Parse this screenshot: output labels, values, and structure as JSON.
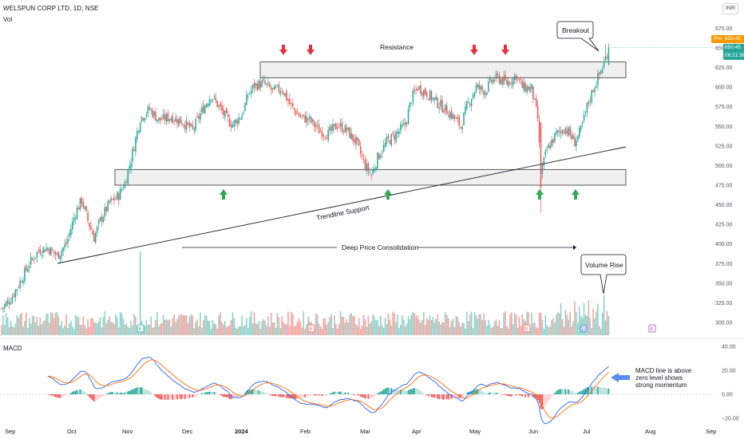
{
  "header": {
    "symbol_title": "WELSPUN CORP LTD, 1D, NSE",
    "vol_label": "Vol",
    "currency": "INR",
    "pre_tag": "Pre",
    "pre_value": "650.45",
    "last_price": "650.45",
    "countdown": "06:21:36"
  },
  "colors": {
    "up": "#26a69a",
    "down": "#ef5350",
    "vol_up": "#8fd1c8",
    "vol_down": "#f5a3a1",
    "macd_line": "#2962ff",
    "signal_line": "#ff6d00",
    "zone_fill": "#f0f0f0",
    "arrow_red": "#e5303d",
    "arrow_green": "#34a853",
    "callout_arrow": "#5b8def"
  },
  "annotations": {
    "resistance": "Resistance",
    "breakout": "Breakout",
    "trendline": "Trendline Support",
    "consolidation": "Deep Price Consolidation",
    "volume_rise": "Volume Rise",
    "macd_note": [
      "MACD line is above",
      "zero level shows",
      "strong momentum"
    ],
    "macd_title": "MACD"
  },
  "chart_data": [
    {
      "type": "candlestick",
      "title": "WELSPUN CORP LTD, 1D, NSE",
      "x_ticks": [
        "Sep",
        "Oct",
        "Nov",
        "Dec",
        "2024",
        "Feb",
        "Mar",
        "Apr",
        "May",
        "Jun",
        "Jul",
        "Aug",
        "Sep"
      ],
      "y_ticks": [
        300,
        325,
        350,
        375,
        400,
        425,
        450,
        475,
        500,
        525,
        550,
        575,
        600,
        625,
        650,
        675
      ],
      "ylim": [
        285,
        690
      ],
      "resistance_zone": [
        612,
        632
      ],
      "support_zone": [
        475,
        495
      ],
      "last_price": 650.45,
      "close_path": [
        [
          0,
          318
        ],
        [
          6,
          330
        ],
        [
          12,
          352
        ],
        [
          18,
          375
        ],
        [
          24,
          392
        ],
        [
          30,
          395
        ],
        [
          36,
          385
        ],
        [
          42,
          400
        ],
        [
          48,
          440
        ],
        [
          52,
          456
        ],
        [
          56,
          430
        ],
        [
          60,
          408
        ],
        [
          64,
          430
        ],
        [
          70,
          452
        ],
        [
          76,
          462
        ],
        [
          80,
          478
        ],
        [
          84,
          508
        ],
        [
          90,
          560
        ],
        [
          96,
          572
        ],
        [
          102,
          558
        ],
        [
          110,
          562
        ],
        [
          118,
          555
        ],
        [
          124,
          545
        ],
        [
          130,
          570
        ],
        [
          136,
          590
        ],
        [
          140,
          578
        ],
        [
          146,
          560
        ],
        [
          150,
          552
        ],
        [
          156,
          565
        ],
        [
          160,
          590
        ],
        [
          164,
          602
        ],
        [
          170,
          605
        ],
        [
          176,
          595
        ],
        [
          182,
          598
        ],
        [
          188,
          575
        ],
        [
          194,
          562
        ],
        [
          200,
          558
        ],
        [
          206,
          545
        ],
        [
          212,
          540
        ],
        [
          218,
          552
        ],
        [
          224,
          545
        ],
        [
          230,
          530
        ],
        [
          236,
          500
        ],
        [
          240,
          488
        ],
        [
          244,
          510
        ],
        [
          250,
          530
        ],
        [
          256,
          540
        ],
        [
          262,
          552
        ],
        [
          266,
          585
        ],
        [
          270,
          600
        ],
        [
          276,
          592
        ],
        [
          280,
          585
        ],
        [
          286,
          575
        ],
        [
          292,
          565
        ],
        [
          298,
          550
        ],
        [
          302,
          575
        ],
        [
          308,
          600
        ],
        [
          314,
          595
        ],
        [
          318,
          608
        ],
        [
          322,
          612
        ],
        [
          328,
          605
        ],
        [
          334,
          615
        ],
        [
          338,
          600
        ],
        [
          344,
          598
        ],
        [
          348,
          560
        ],
        [
          350,
          490
        ],
        [
          354,
          520
        ],
        [
          360,
          540
        ],
        [
          366,
          548
        ],
        [
          372,
          530
        ],
        [
          376,
          545
        ],
        [
          380,
          575
        ],
        [
          384,
          598
        ],
        [
          390,
          625
        ],
        [
          394,
          650
        ]
      ]
    },
    {
      "type": "bar",
      "title": "Vol",
      "markers": [
        "E",
        "E",
        "E",
        "D",
        "E"
      ]
    },
    {
      "type": "line",
      "title": "MACD",
      "series": [
        {
          "name": "MACD",
          "values": []
        },
        {
          "name": "Signal",
          "values": []
        }
      ],
      "y_ticks": [
        40,
        20,
        0,
        -20
      ],
      "ylim": [
        -24,
        44
      ]
    }
  ]
}
